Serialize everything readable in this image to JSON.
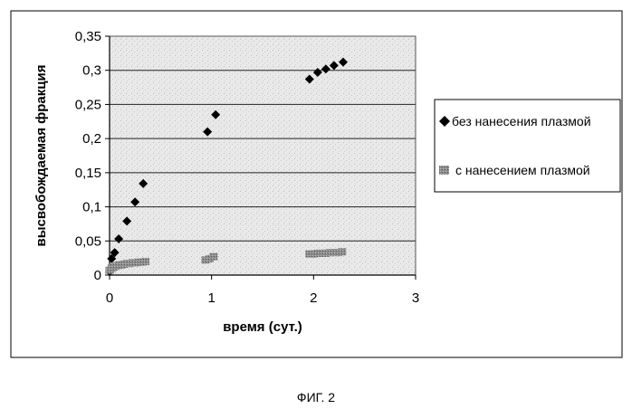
{
  "caption": "ФИГ. 2",
  "chart_data": {
    "type": "scatter",
    "xlabel": "время (сут.)",
    "ylabel": "высвобождаемая фракция",
    "xlim": [
      0,
      3
    ],
    "ylim": [
      0,
      0.35
    ],
    "x_ticks": [
      "0",
      "1",
      "2",
      "3"
    ],
    "y_ticks": [
      "0",
      "0,05",
      "0,1",
      "0,15",
      "0,2",
      "0,25",
      "0,3",
      "0,35"
    ],
    "grid": "horizontal",
    "legend_position": "right",
    "plot_background": "stippled gray",
    "series": [
      {
        "name": "без нанесения плазмой",
        "marker": "diamond",
        "color": "#000000",
        "x": [
          0.0,
          0.02,
          0.05,
          0.09,
          0.17,
          0.25,
          0.33,
          0.96,
          1.04,
          1.96,
          2.04,
          2.12,
          2.2,
          2.29
        ],
        "y": [
          0.005,
          0.024,
          0.033,
          0.053,
          0.079,
          0.107,
          0.134,
          0.21,
          0.235,
          0.287,
          0.297,
          0.302,
          0.307,
          0.312
        ]
      },
      {
        "name": "с нанесением плазмой",
        "marker": "square",
        "color": "#777777",
        "x": [
          0.0,
          0.02,
          0.04,
          0.06,
          0.08,
          0.1,
          0.12,
          0.14,
          0.17,
          0.2,
          0.23,
          0.26,
          0.29,
          0.32,
          0.35,
          0.94,
          0.98,
          1.02,
          1.96,
          2.0,
          2.04,
          2.08,
          2.12,
          2.16,
          2.2,
          2.24,
          2.28
        ],
        "y": [
          0.007,
          0.01,
          0.012,
          0.013,
          0.014,
          0.015,
          0.015,
          0.016,
          0.017,
          0.017,
          0.018,
          0.018,
          0.019,
          0.019,
          0.02,
          0.022,
          0.024,
          0.027,
          0.031,
          0.031,
          0.032,
          0.032,
          0.032,
          0.033,
          0.033,
          0.033,
          0.034
        ]
      }
    ]
  }
}
